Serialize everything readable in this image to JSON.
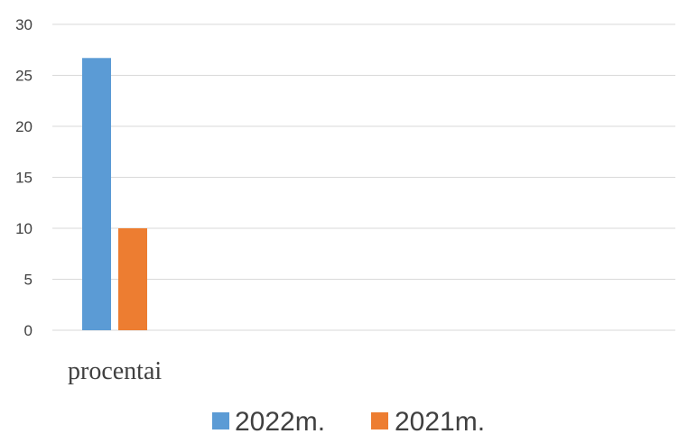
{
  "chart_data": {
    "type": "bar",
    "categories": [
      "procentai"
    ],
    "series": [
      {
        "name": "2022m.",
        "color": "#5B9BD5",
        "values": [
          26.7
        ]
      },
      {
        "name": "2021m.",
        "color": "#ED7D31",
        "values": [
          10
        ]
      }
    ],
    "yticks": [
      "0",
      "5",
      "10",
      "15",
      "20",
      "25",
      "30"
    ],
    "ylim": [
      0,
      30
    ],
    "grid": true,
    "legend_position": "bottom",
    "colors": {
      "gridline": "#D9D9D9",
      "text": "#404040"
    }
  }
}
